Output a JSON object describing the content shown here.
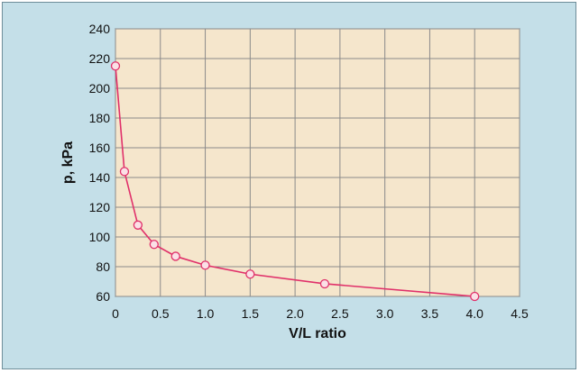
{
  "chart_data": {
    "type": "line",
    "title": "",
    "xlabel": "V/L ratio",
    "ylabel": "p, kPa",
    "xlim": [
      0,
      4.5
    ],
    "ylim": [
      60,
      240
    ],
    "x_ticks": [
      0,
      0.5,
      1.0,
      1.5,
      2.0,
      2.5,
      3.0,
      3.5,
      4.0,
      4.5
    ],
    "x_tick_labels": [
      "0",
      "0.5",
      "1.0",
      "1.5",
      "2.0",
      "2.5",
      "3.0",
      "3.5",
      "4.0",
      "4.5"
    ],
    "y_ticks": [
      60,
      80,
      100,
      120,
      140,
      160,
      180,
      200,
      220,
      240
    ],
    "y_tick_labels": [
      "60",
      "80",
      "100",
      "120",
      "140",
      "160",
      "180",
      "200",
      "220",
      "240"
    ],
    "grid": true,
    "series": [
      {
        "x": [
          0,
          0.1,
          0.25,
          0.43,
          0.67,
          1.0,
          1.5,
          2.33,
          4.0
        ],
        "y": [
          215,
          144,
          108,
          95,
          87,
          81,
          75,
          68.5,
          60
        ]
      }
    ],
    "colors": {
      "frame_background": "#c4dfe8",
      "plot_background": "#f5e6cc",
      "grid": "#8a8a8a",
      "line": "#e0306a",
      "marker_fill": "#fbe0e6"
    }
  }
}
